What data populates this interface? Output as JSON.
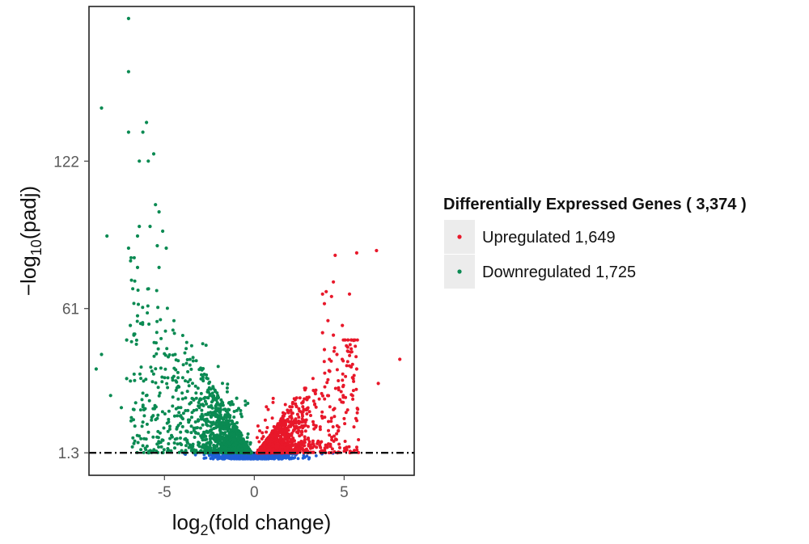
{
  "chart_data": {
    "type": "scatter",
    "title": "",
    "xlabel_main": "log",
    "xlabel_sub": "2",
    "xlabel_rest": "(fold change)",
    "ylabel_pre": "−log",
    "ylabel_sub": "10",
    "ylabel_rest": "(padj)",
    "xlim": [
      -9.2,
      8.9
    ],
    "ylim": [
      -8,
      186
    ],
    "x_ticks": [
      -5,
      0,
      5
    ],
    "x_tick_labels": [
      "-5",
      "0",
      "5"
    ],
    "y_ticks": [
      1.3,
      61,
      122
    ],
    "y_tick_labels": [
      "1.3",
      "61",
      "122"
    ],
    "threshold": {
      "y": 1.3,
      "style": "dash-dot"
    },
    "grid": false,
    "legend": {
      "position": "right",
      "title": "Differentially Expressed Genes ( 3,374 )",
      "entries": [
        {
          "label": "Upregulated 1,649",
          "color": "#e8182a"
        },
        {
          "label": "Downregulated 1,725",
          "color": "#0a8a52"
        }
      ]
    },
    "colors": {
      "up": "#e8182a",
      "down": "#0a8a52",
      "nonsig": "#1f5fd6"
    },
    "series": [
      {
        "name": "Upregulated 1,649",
        "color": "#e8182a",
        "points": [
          [
            6.8,
            85
          ],
          [
            5.7,
            84
          ],
          [
            4.5,
            83
          ],
          [
            4.4,
            72
          ],
          [
            3.8,
            67
          ],
          [
            4.0,
            68
          ],
          [
            4.3,
            66
          ],
          [
            3.9,
            63
          ],
          [
            5.3,
            67
          ],
          [
            4.1,
            56
          ],
          [
            4.9,
            54
          ],
          [
            3.8,
            51
          ],
          [
            4.4,
            50
          ],
          [
            8.1,
            40
          ],
          [
            5.7,
            36
          ],
          [
            6.9,
            30
          ],
          [
            5.2,
            45
          ],
          [
            4.6,
            42
          ],
          [
            3.9,
            44
          ],
          [
            4.2,
            35
          ]
        ]
      },
      {
        "name": "Downregulated 1,725",
        "color": "#0a8a52",
        "points": [
          [
            -7.0,
            181
          ],
          [
            -7.0,
            159
          ],
          [
            -8.5,
            144
          ],
          [
            -6.0,
            138
          ],
          [
            -6.2,
            134
          ],
          [
            -7.0,
            134
          ],
          [
            -5.6,
            125
          ],
          [
            -6.4,
            122
          ],
          [
            -5.9,
            122
          ],
          [
            -5.5,
            104
          ],
          [
            -5.3,
            101
          ],
          [
            -5.8,
            95
          ],
          [
            -6.4,
            95
          ],
          [
            -5.1,
            93
          ],
          [
            -8.2,
            91
          ],
          [
            -6.5,
            91
          ],
          [
            -7.0,
            86
          ],
          [
            -5.4,
            87
          ],
          [
            -4.9,
            86
          ],
          [
            -6.5,
            78
          ],
          [
            -5.3,
            78
          ],
          [
            -8.5,
            42
          ],
          [
            -8.8,
            36
          ],
          [
            -8.0,
            25
          ],
          [
            -7.1,
            32
          ],
          [
            -7.4,
            20
          ],
          [
            -6.6,
            22
          ],
          [
            -5.7,
            16
          ],
          [
            -6.2,
            14
          ],
          [
            -7.1,
            48
          ],
          [
            -6.9,
            54
          ],
          [
            -6.5,
            58
          ],
          [
            -6.7,
            50
          ]
        ]
      },
      {
        "name": "",
        "color": "#1f5fd6",
        "points": []
      }
    ]
  }
}
